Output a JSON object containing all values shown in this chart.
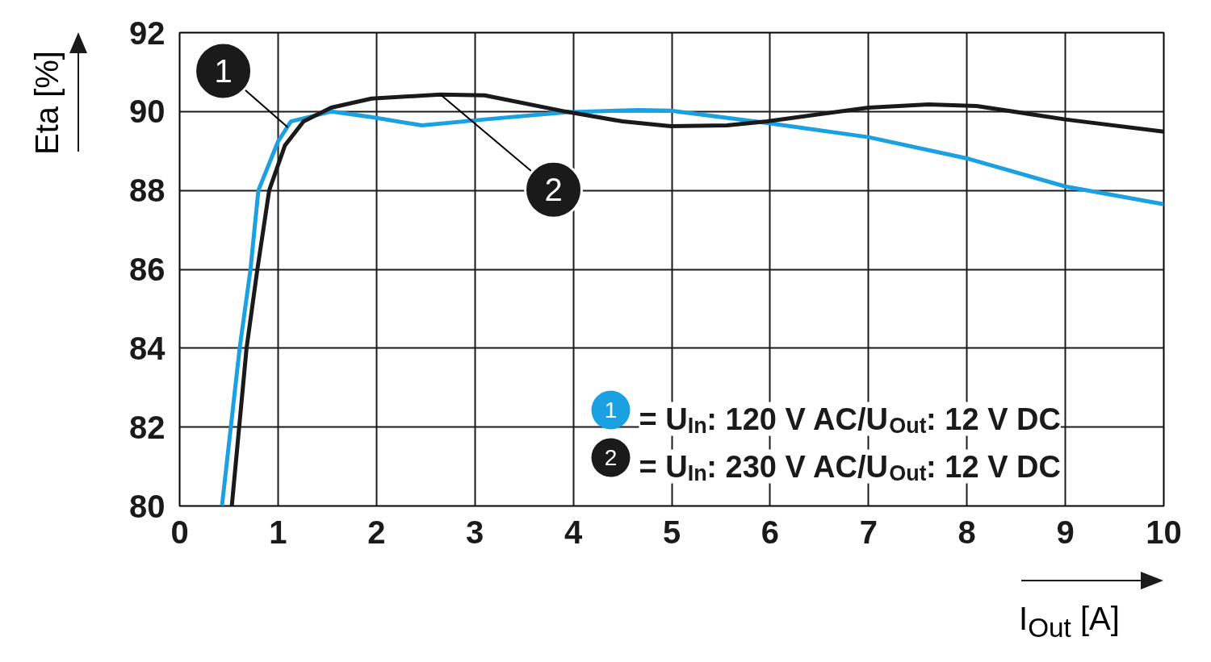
{
  "chart_data": {
    "type": "line",
    "xlabel": "I$_{Out}$ [A]",
    "ylabel": "Eta [%]",
    "xlim": [
      0,
      10
    ],
    "ylim": [
      80,
      92
    ],
    "xticks": [
      0,
      1,
      2,
      3,
      4,
      5,
      6,
      7,
      8,
      9,
      10
    ],
    "yticks": [
      80,
      82,
      84,
      86,
      88,
      90,
      92
    ],
    "grid": true,
    "legend": "bottom right",
    "line_style": "solid",
    "marker": "none",
    "series": [
      {
        "name": "= U$_{In}$: 120 V AC/U$_{Out}$: 12 V DC",
        "color": "#1ba1e2",
        "x": [
          0.43,
          0.61,
          0.72,
          0.8,
          1.0,
          1.13,
          1.54,
          1.95,
          2.46,
          3.1,
          3.92,
          4.66,
          4.99,
          5.97,
          7.0,
          8.02,
          9.0,
          10.0
        ],
        "values": [
          80,
          84,
          86,
          88,
          89.24,
          89.75,
          90.0,
          89.86,
          89.65,
          89.8,
          89.98,
          90.04,
          90.02,
          89.71,
          89.35,
          88.8,
          88.1,
          87.65
        ]
      },
      {
        "name": "= U$_{In}$: 230 V AC/U$_{Out}$: 12 V DC",
        "color": "#1a1a1a",
        "x": [
          0.53,
          0.68,
          0.79,
          0.91,
          1.07,
          1.26,
          1.54,
          1.95,
          2.65,
          3.1,
          3.92,
          4.5,
          4.99,
          5.56,
          5.97,
          7.0,
          7.61,
          8.1,
          9.0,
          10.0
        ],
        "values": [
          80,
          84,
          86,
          88,
          89.14,
          89.75,
          90.1,
          90.33,
          90.43,
          90.41,
          90.0,
          89.75,
          89.63,
          89.65,
          89.75,
          90.1,
          90.18,
          90.14,
          89.8,
          89.49
        ]
      }
    ],
    "annotations": [
      {
        "text": "1",
        "x": 1.1,
        "y": 89.6
      },
      {
        "text": "2",
        "x": 2.65,
        "y": 90.43
      }
    ]
  }
}
